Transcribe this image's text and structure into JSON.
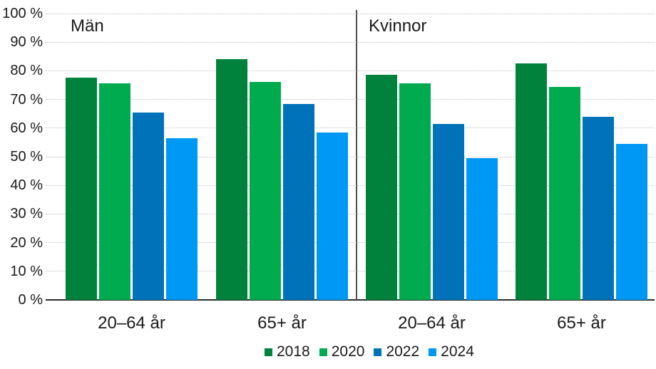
{
  "chart_data": {
    "type": "bar",
    "unit": "%",
    "panels": [
      {
        "label": "Män"
      },
      {
        "label": "Kvinnor"
      }
    ],
    "groups": [
      {
        "panel": "Män",
        "category": "20–64 år"
      },
      {
        "panel": "Män",
        "category": "65+ år"
      },
      {
        "panel": "Kvinnor",
        "category": "20–64 år"
      },
      {
        "panel": "Kvinnor",
        "category": "65+ år"
      }
    ],
    "series": [
      {
        "name": "2018",
        "color": "#00813C",
        "values": [
          77.5,
          84.0,
          78.5,
          82.5
        ]
      },
      {
        "name": "2020",
        "color": "#00AB4F",
        "values": [
          75.5,
          76.0,
          75.5,
          74.5
        ]
      },
      {
        "name": "2022",
        "color": "#0072B9",
        "values": [
          65.5,
          68.5,
          61.5,
          64.0
        ]
      },
      {
        "name": "2024",
        "color": "#0098F5",
        "values": [
          56.5,
          58.5,
          49.5,
          54.5
        ]
      }
    ],
    "y_axis": {
      "min": 0,
      "max": 100,
      "step": 10,
      "tick_labels": [
        "0 %",
        "10 %",
        "20 %",
        "30 %",
        "40 %",
        "50 %",
        "60 %",
        "70 %",
        "80 %",
        "90 %",
        "100 %"
      ]
    },
    "legend": {
      "position": "bottom",
      "entries": [
        "2018",
        "2020",
        "2022",
        "2024"
      ]
    },
    "grid": true
  },
  "colors": {
    "background": "#ffffff",
    "gridline": "#bfbfbf",
    "axis": "#2b2b2b",
    "divider": "#4f4f4f",
    "text": "#1a1a1a"
  }
}
